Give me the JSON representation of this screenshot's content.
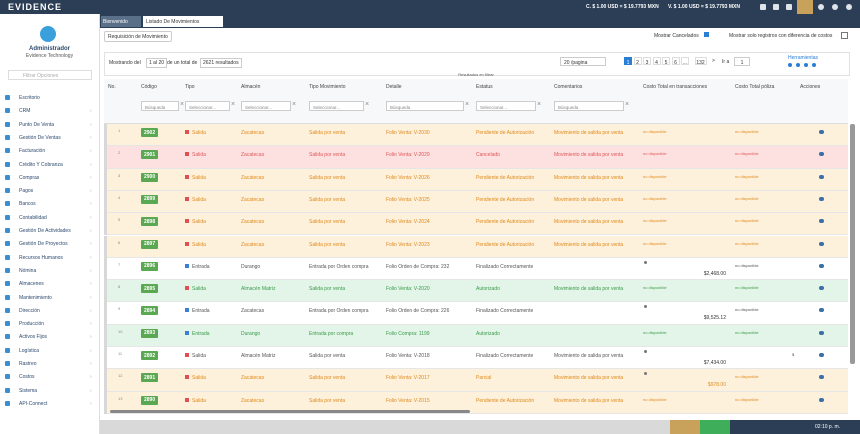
{
  "header": {
    "logo": "EVIDENCE",
    "rate_buy": "C. $ 1.00 USD = $ 19.7793 MXN",
    "rate_sell": "V. $ 1.00 USD = $ 19.7793 MXN"
  },
  "sidebar": {
    "user": "Administrador",
    "company": "Evidence Technology",
    "search": "Filtrar Opciones",
    "menu": [
      "Escritorio",
      "CRM",
      "Punto De Venta",
      "Gestión De Ventas",
      "Facturación",
      "Crédito Y Cobranza",
      "Compras",
      "Pagos",
      "Bancos",
      "Contabilidad",
      "Gestión De Actividades",
      "Gestión De Proyectos",
      "Recursos Humanos",
      "Nómina",
      "Almacenes",
      "Mantenimiento",
      "Dirección",
      "Producción",
      "Activos Fijos",
      "Logística",
      "Rastreo",
      "Costos",
      "Sistema",
      "API-Connect"
    ]
  },
  "tabs": [
    "Bienvenido",
    "Listado De Movimientos"
  ],
  "toolbar": {
    "button": "Requisición de Movimiento",
    "show_cancelled": "Mostrar Cancelados",
    "show_diff": "Mostrar solo registros con diferencia de costos"
  },
  "pagination": {
    "showing": "Mostrando del",
    "range": "1 al 20",
    "of_total": "de un total de",
    "total": "2621 resultados",
    "per_page": "20 /pagina",
    "pages": [
      "1",
      "2",
      "3",
      "4",
      "5",
      "6",
      "...",
      "132"
    ],
    "next": ">",
    "goto": "Ir a",
    "goto_value": "1",
    "tools": "Herramientas"
  },
  "filter_note": "Resultados en filtrar",
  "table": {
    "columns": [
      "No.",
      "Código",
      "Tipo",
      "Almacén",
      "Tipo Movimiento",
      "Detalle",
      "Estatus",
      "Comentarios",
      "Costo Total en transacciones",
      "Costo Total póliza",
      "Acciones"
    ],
    "filters": [
      "Búsqueda",
      "Seleccionar...",
      "Seleccionar...",
      "Seleccionar...",
      "Búsqueda",
      "Seleccionar...",
      "Búsqueda"
    ],
    "rows": [
      {
        "cells": [
          "1",
          "2902",
          "Salida",
          "Zacatecas",
          "Salida por venta",
          "Folio Venta: V-2030",
          "Pendiente de Autorización",
          "Movimiento de salida por venta",
          "no disponible",
          "no disponible"
        ],
        "color": "#fdf1dc",
        "text_color": "#e0891a"
      },
      {
        "cells": [
          "2",
          "2901",
          "Salida",
          "Zacatecas",
          "Salida por venta",
          "Folio Venta: V-2029",
          "Cancelado",
          "Movimiento de salida por venta",
          "no disponible",
          "no disponible"
        ],
        "color": "#fde1e1",
        "text_color": "#e05555"
      },
      {
        "cells": [
          "3",
          "2900",
          "Salida",
          "Zacatecas",
          "Salida por venta",
          "Folio Venta: V-2026",
          "Pendiente de Autorización",
          "Movimiento de salida por venta",
          "no disponible",
          "no disponible"
        ],
        "color": "#fdf1dc",
        "text_color": "#e0891a"
      },
      {
        "cells": [
          "4",
          "2899",
          "Salida",
          "Zacatecas",
          "Salida por venta",
          "Folio Venta: V-2025",
          "Pendiente de Autorización",
          "Movimiento de salida por venta",
          "no disponible",
          "no disponible"
        ],
        "color": "#fdf1dc",
        "text_color": "#e0891a"
      },
      {
        "cells": [
          "5",
          "2898",
          "Salida",
          "Zacatecas",
          "Salida por venta",
          "Folio Venta: V-2024",
          "Pendiente de Autorización",
          "Movimiento de salida por venta",
          "no disponible",
          "no disponible"
        ],
        "color": "#fdf1dc",
        "text_color": "#e0891a"
      },
      {
        "cells": [
          "6",
          "2897",
          "Salida",
          "Zacatecas",
          "Salida por venta",
          "Folio Venta: V-2023",
          "Pendiente de Autorización",
          "Movimiento de salida por venta",
          "no disponible",
          "no disponible"
        ],
        "color": "#fdf1dc",
        "text_color": "#e0891a"
      },
      {
        "cells": [
          "7",
          "2896",
          "Entrada",
          "Durango",
          "Entrada por Orden compra",
          "Folio Orden de Compra: 232",
          "Finalizado Correctamente",
          "",
          "$2,468.00",
          "no disponible"
        ],
        "color": "#ffffff",
        "text_color": "#555555"
      },
      {
        "cells": [
          "8",
          "2895",
          "Salida",
          "Almacén Matriz",
          "Salida por venta",
          "Folio Venta: V-2020",
          "Autorizado",
          "Movimiento de salida por venta",
          "no disponible",
          "no disponible"
        ],
        "color": "#e3f5e8",
        "text_color": "#3a9a4a"
      },
      {
        "cells": [
          "9",
          "2894",
          "Entrada",
          "Zacatecas",
          "Entrada por Orden compra",
          "Folio Orden de Compra: 226",
          "Finalizado Correctamente",
          "",
          "$9,525.12",
          "no disponible"
        ],
        "color": "#ffffff",
        "text_color": "#555555"
      },
      {
        "cells": [
          "10",
          "2893",
          "Entrada",
          "Durango",
          "Entrada por compra",
          "Folio Compra: 1199",
          "Autorizado",
          "",
          "no disponible",
          "no disponible"
        ],
        "color": "#e3f5e8",
        "text_color": "#3a9a4a"
      },
      {
        "cells": [
          "11",
          "2892",
          "Salida",
          "Almacén Matriz",
          "Salida por venta",
          "Folio Venta: V-2018",
          "Finalizado Correctamente",
          "Movimiento de salida por venta",
          "$7,434.00",
          "$"
        ],
        "color": "#ffffff",
        "text_color": "#555555"
      },
      {
        "cells": [
          "12",
          "2891",
          "Salida",
          "Zacatecas",
          "Salida por venta",
          "Folio Venta: V-2017",
          "Parcial",
          "Movimiento de salida por venta",
          "$978.00",
          "no disponible"
        ],
        "color": "#fdf1dc",
        "text_color": "#e0891a"
      },
      {
        "cells": [
          "13",
          "2890",
          "Salida",
          "Zacatecas",
          "Salida por venta",
          "Folio Venta: V-2015",
          "Pendiente de Autorización",
          "Movimiento de salida por venta",
          "no disponible",
          "no disponible"
        ],
        "color": "#fdf1dc",
        "text_color": "#e0891a"
      }
    ]
  },
  "footer": {
    "time": "02:10 p. m."
  }
}
